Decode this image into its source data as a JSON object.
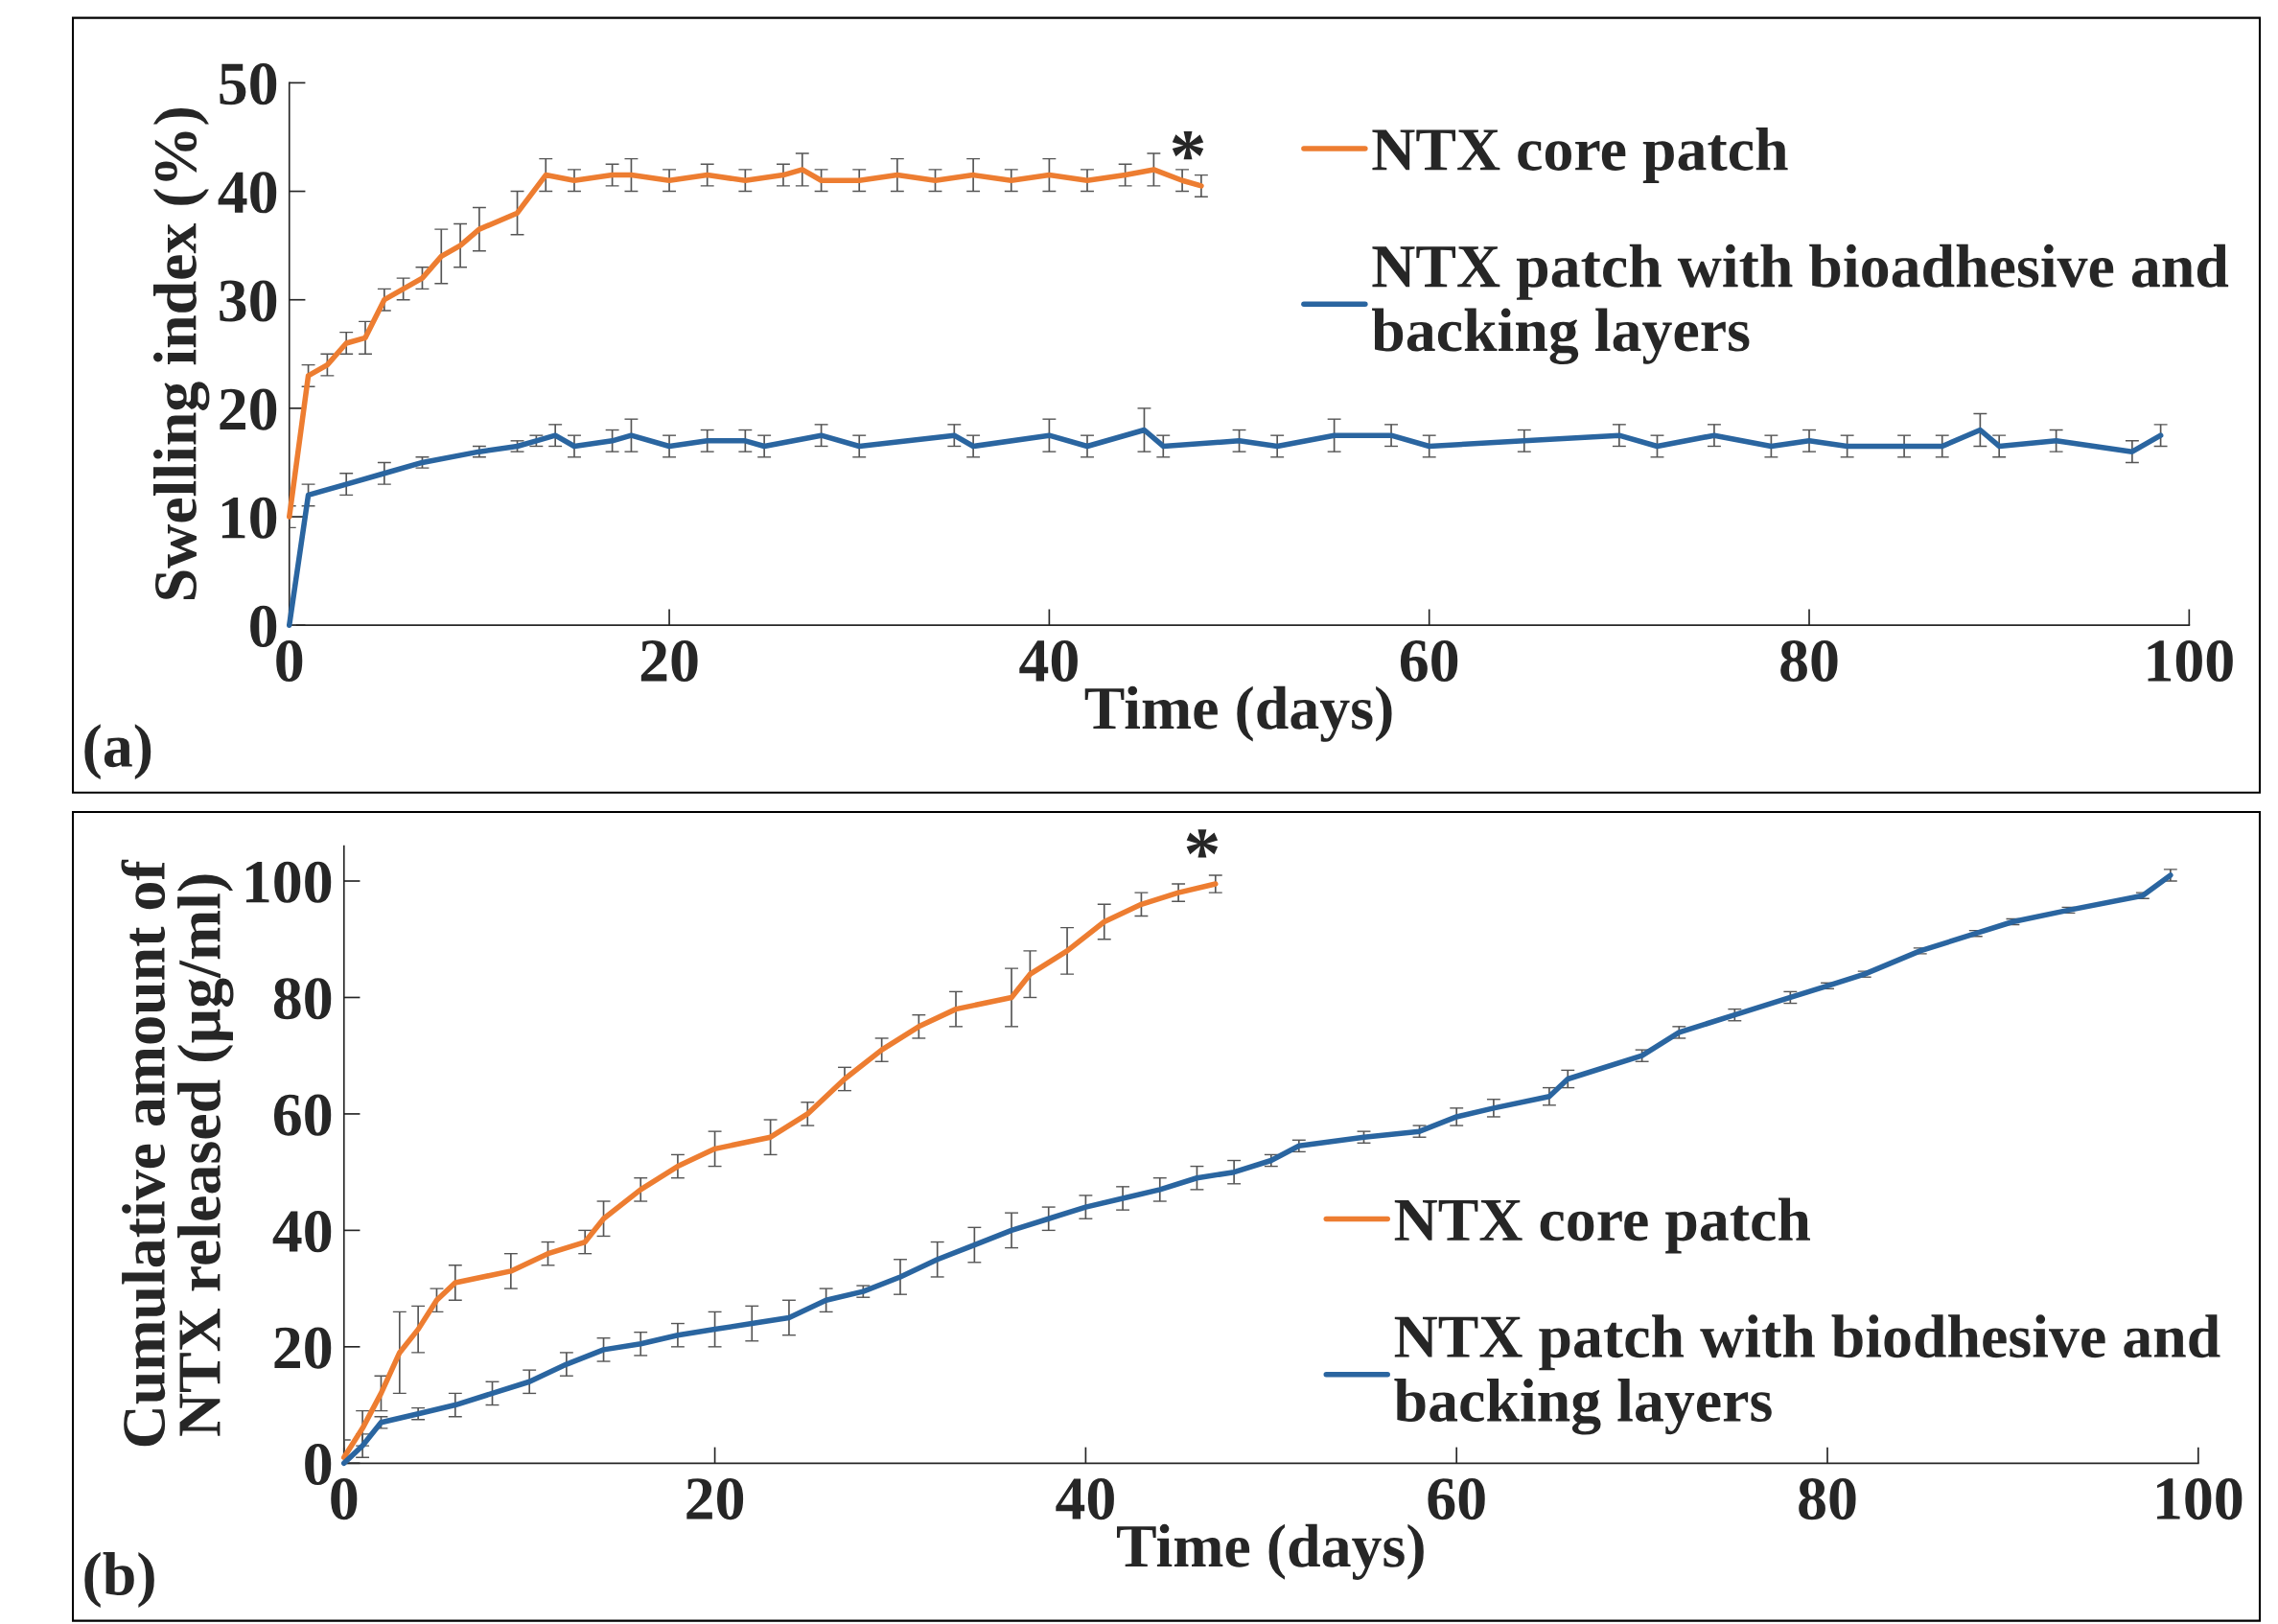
{
  "chart_data": [
    {
      "type": "line",
      "xlabel": "Time (days)",
      "ylabel": "Swelling index (%)",
      "xlim": [
        0,
        100
      ],
      "ylim": [
        0,
        50
      ],
      "xticks": [
        0,
        20,
        40,
        60,
        80,
        100
      ],
      "yticks": [
        0,
        10,
        20,
        30,
        40,
        50
      ],
      "grid": false,
      "legend": "top right",
      "marker": "none",
      "line_style": "solid",
      "annotations": [
        "(a)",
        "*"
      ],
      "series": [
        {
          "name": "NTX core patch",
          "color": "#ed7d31",
          "x": [
            0,
            1,
            2,
            3,
            4,
            5,
            6,
            7,
            8,
            9,
            10,
            12,
            13.5,
            15,
            17,
            18,
            20,
            22,
            24,
            26,
            27,
            28,
            30,
            32,
            34,
            36,
            38,
            40,
            42,
            44,
            45.5,
            47,
            48
          ],
          "values": [
            10,
            23,
            24,
            26,
            26.5,
            30,
            31,
            32,
            34,
            35,
            36.5,
            38,
            41.5,
            41,
            41.5,
            41.5,
            41,
            41.5,
            41,
            41.5,
            42,
            41,
            41,
            41.5,
            41,
            41.5,
            41,
            41.5,
            41,
            41.5,
            42,
            41,
            40.5
          ],
          "errors": [
            1,
            1,
            1,
            1,
            1.5,
            1,
            1,
            1,
            2.5,
            2,
            2,
            2,
            1.5,
            1,
            1,
            1.5,
            1,
            1,
            1,
            1,
            1.5,
            1,
            1,
            1.5,
            1,
            1.5,
            1,
            1.5,
            1,
            1,
            1.5,
            1,
            1
          ]
        },
        {
          "name": "NTX patch with bioadhesive and\nbacking layers",
          "color": "#2a65a0",
          "x": [
            0,
            1,
            3,
            5,
            7,
            10,
            12,
            13,
            14,
            15,
            17,
            18,
            20,
            22,
            24,
            25,
            28,
            30,
            35,
            36,
            40,
            42,
            45,
            46,
            50,
            52,
            55,
            58,
            60,
            65,
            70,
            72,
            75,
            78,
            80,
            82,
            85,
            87,
            89,
            90,
            93,
            97,
            98.5
          ],
          "values": [
            0,
            12,
            13,
            14,
            15,
            16,
            16.5,
            17,
            17.5,
            16.5,
            17,
            17.5,
            16.5,
            17,
            17,
            16.5,
            17.5,
            16.5,
            17.5,
            16.5,
            17.5,
            16.5,
            18,
            16.5,
            17,
            16.5,
            17.5,
            17.5,
            16.5,
            17,
            17.5,
            16.5,
            17.5,
            16.5,
            17,
            16.5,
            16.5,
            16.5,
            18,
            16.5,
            17,
            16,
            17.5
          ],
          "errors": [
            0,
            1,
            1,
            1,
            0.5,
            0.5,
            0.5,
            0.5,
            1,
            1,
            1,
            1.5,
            1,
            1,
            1,
            1,
            1,
            1,
            1,
            1,
            1.5,
            1,
            2,
            1,
            1,
            1,
            1.5,
            1,
            1,
            1,
            1,
            1,
            1,
            1,
            1,
            1,
            1,
            1,
            1.5,
            1,
            1,
            1,
            1
          ]
        }
      ]
    },
    {
      "type": "line",
      "xlabel": "Time (days)",
      "ylabel": "Cumulative amount of\nNTX released (µg/ml)",
      "xlim": [
        0,
        100
      ],
      "ylim": [
        0,
        106
      ],
      "xticks": [
        0,
        20,
        40,
        60,
        80,
        100
      ],
      "yticks": [
        0,
        20,
        40,
        60,
        80,
        100
      ],
      "grid": false,
      "legend": "right",
      "marker": "none",
      "line_style": "solid",
      "annotations": [
        "(b)",
        "*"
      ],
      "series": [
        {
          "name": "NTX core patch",
          "color": "#ed7d31",
          "x": [
            0,
            1,
            2,
            3,
            4,
            5,
            6,
            9,
            11,
            13,
            14,
            16,
            18,
            20,
            23,
            25,
            27,
            29,
            31,
            33,
            36,
            37,
            39,
            41,
            43,
            45,
            47
          ],
          "values": [
            1,
            6,
            12,
            19,
            23,
            28,
            31,
            33,
            36,
            38,
            42,
            47,
            51,
            54,
            56,
            60,
            66,
            71,
            75,
            78,
            80,
            84,
            88,
            93,
            96,
            98,
            99.5
          ],
          "errors": [
            3,
            3,
            3,
            7,
            4,
            2,
            3,
            3,
            2,
            2,
            3,
            2,
            2,
            3,
            3,
            2,
            2,
            2,
            2,
            3,
            5,
            4,
            4,
            3,
            2,
            1.5,
            1.5
          ]
        },
        {
          "name": "NTX patch with biodhesive and\nbacking layers",
          "color": "#2a65a0",
          "x": [
            0,
            1,
            2,
            4,
            6,
            8,
            10,
            12,
            14,
            16,
            18,
            20,
            22,
            24,
            26,
            28,
            30,
            32,
            34,
            36,
            38,
            40,
            42,
            44,
            46,
            48,
            50,
            51.5,
            55,
            58,
            60,
            62,
            65,
            66,
            70,
            72,
            75,
            78,
            80,
            82,
            85,
            88,
            90,
            93,
            97,
            98.5
          ],
          "values": [
            0,
            3,
            7,
            8.5,
            10,
            12,
            14,
            17,
            19.5,
            20.5,
            22,
            23,
            24,
            25,
            28,
            29.5,
            32,
            35,
            37.5,
            40,
            42,
            44,
            45.5,
            47,
            49,
            50,
            52,
            54.5,
            56,
            57,
            59.5,
            61,
            63,
            66,
            70,
            74,
            77,
            80,
            82,
            84,
            88,
            91,
            93,
            95,
            97.5,
            101
          ],
          "errors": [
            null,
            2,
            1,
            1,
            2,
            2,
            2,
            2,
            2,
            2,
            2,
            3,
            3,
            3,
            2,
            1,
            3,
            3,
            3,
            3,
            2,
            2,
            2,
            2,
            2,
            2,
            1,
            1,
            1,
            1,
            1.5,
            1.5,
            1.5,
            1.5,
            1,
            1,
            1,
            1,
            0.5,
            0.5,
            0.5,
            0.5,
            0.5,
            0.5,
            0.5,
            1
          ]
        }
      ]
    }
  ]
}
